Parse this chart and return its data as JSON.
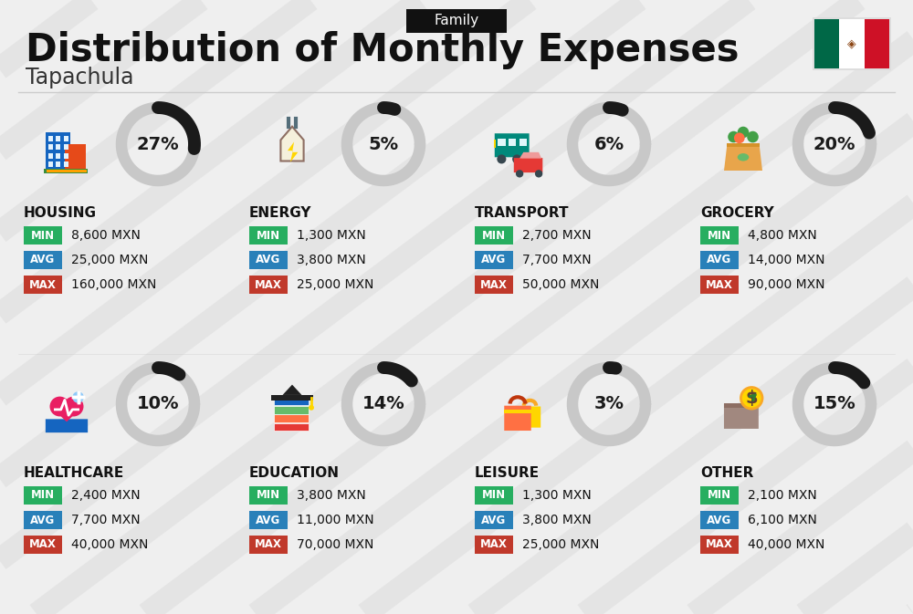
{
  "title": "Distribution of Monthly Expenses",
  "subtitle": "Tapachula",
  "category_label": "Family",
  "bg_color": "#efefef",
  "categories": [
    {
      "name": "HOUSING",
      "pct": 27,
      "min_val": "8,600 MXN",
      "avg_val": "25,000 MXN",
      "max_val": "160,000 MXN",
      "col": 0,
      "row": 0
    },
    {
      "name": "ENERGY",
      "pct": 5,
      "min_val": "1,300 MXN",
      "avg_val": "3,800 MXN",
      "max_val": "25,000 MXN",
      "col": 1,
      "row": 0
    },
    {
      "name": "TRANSPORT",
      "pct": 6,
      "min_val": "2,700 MXN",
      "avg_val": "7,700 MXN",
      "max_val": "50,000 MXN",
      "col": 2,
      "row": 0
    },
    {
      "name": "GROCERY",
      "pct": 20,
      "min_val": "4,800 MXN",
      "avg_val": "14,000 MXN",
      "max_val": "90,000 MXN",
      "col": 3,
      "row": 0
    },
    {
      "name": "HEALTHCARE",
      "pct": 10,
      "min_val": "2,400 MXN",
      "avg_val": "7,700 MXN",
      "max_val": "40,000 MXN",
      "col": 0,
      "row": 1
    },
    {
      "name": "EDUCATION",
      "pct": 14,
      "min_val": "3,800 MXN",
      "avg_val": "11,000 MXN",
      "max_val": "70,000 MXN",
      "col": 1,
      "row": 1
    },
    {
      "name": "LEISURE",
      "pct": 3,
      "min_val": "1,300 MXN",
      "avg_val": "3,800 MXN",
      "max_val": "25,000 MXN",
      "col": 2,
      "row": 1
    },
    {
      "name": "OTHER",
      "pct": 15,
      "min_val": "2,100 MXN",
      "avg_val": "6,100 MXN",
      "max_val": "40,000 MXN",
      "col": 3,
      "row": 1
    }
  ],
  "min_color": "#27ae60",
  "avg_color": "#2980b9",
  "max_color": "#c0392b",
  "arc_dark": "#1a1a1a",
  "arc_light": "#c8c8c8",
  "header_bg": "#111111",
  "title_color": "#111111",
  "flag_green": "#006847",
  "flag_white": "#ffffff",
  "flag_red": "#ce1126",
  "diag_color": "#d8d8d8",
  "divider_color": "#cccccc"
}
